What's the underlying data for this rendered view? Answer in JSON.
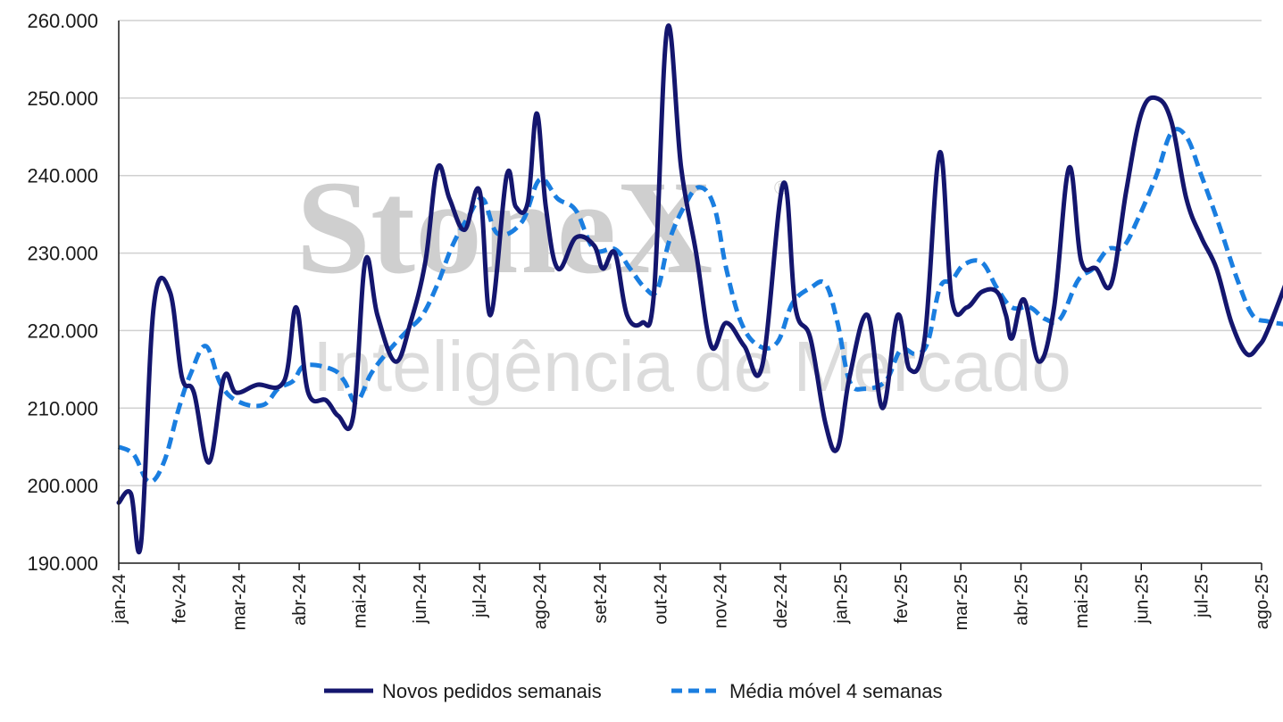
{
  "colors": {
    "series_solid": "#14166e",
    "series_dashed": "#1a7ee0",
    "grid": "#d0d0d0",
    "axis": "#1a1a1a",
    "watermark": "#cfcfcf"
  },
  "watermark": {
    "brand": "StoneX",
    "registered": "®",
    "tagline": "Inteligência de Mercado"
  },
  "chart_data": {
    "type": "line",
    "title": "",
    "xlabel": "",
    "ylabel": "",
    "ylim": [
      190000,
      260000
    ],
    "yticks": [
      190000,
      200000,
      210000,
      220000,
      230000,
      240000,
      250000,
      260000
    ],
    "ytick_labels": [
      "190.000",
      "200.000",
      "210.000",
      "220.000",
      "230.000",
      "240.000",
      "250.000",
      "260.000"
    ],
    "grid": true,
    "legend_position": "bottom",
    "x_month_labels": [
      "jan-24",
      "fev-24",
      "mar-24",
      "abr-24",
      "mai-24",
      "jun-24",
      "jul-24",
      "ago-24",
      "set-24",
      "out-24",
      "nov-24",
      "dez-24",
      "jan-25",
      "fev-25",
      "mar-25",
      "abr-25",
      "mai-25",
      "jun-25",
      "jul-25",
      "ago-25"
    ],
    "series": [
      {
        "name": "Novos pedidos semanais",
        "style": "solid",
        "points": [
          [
            0,
            197800
          ],
          [
            0.2,
            199000
          ],
          [
            0.37,
            192500
          ],
          [
            0.58,
            223000
          ],
          [
            0.85,
            225000
          ],
          [
            1.05,
            214000
          ],
          [
            1.25,
            212000
          ],
          [
            1.5,
            203000
          ],
          [
            1.75,
            214000
          ],
          [
            1.95,
            212000
          ],
          [
            2.3,
            213000
          ],
          [
            2.75,
            213500
          ],
          [
            2.95,
            223000
          ],
          [
            3.15,
            212000
          ],
          [
            3.45,
            211000
          ],
          [
            3.65,
            209000
          ],
          [
            3.9,
            209000
          ],
          [
            4.1,
            229000
          ],
          [
            4.3,
            222000
          ],
          [
            4.6,
            216000
          ],
          [
            4.85,
            221000
          ],
          [
            5.1,
            229000
          ],
          [
            5.3,
            241000
          ],
          [
            5.5,
            237000
          ],
          [
            5.75,
            233000
          ],
          [
            6.0,
            238000
          ],
          [
            6.18,
            222000
          ],
          [
            6.45,
            240000
          ],
          [
            6.6,
            236000
          ],
          [
            6.8,
            236500
          ],
          [
            6.95,
            248000
          ],
          [
            7.1,
            236000
          ],
          [
            7.3,
            228000
          ],
          [
            7.6,
            232000
          ],
          [
            7.9,
            231000
          ],
          [
            8.05,
            228000
          ],
          [
            8.25,
            230000
          ],
          [
            8.45,
            222000
          ],
          [
            8.7,
            221000
          ],
          [
            8.9,
            225000
          ],
          [
            9.12,
            259000
          ],
          [
            9.35,
            241000
          ],
          [
            9.6,
            230000
          ],
          [
            9.85,
            218000
          ],
          [
            10.1,
            221000
          ],
          [
            10.4,
            218000
          ],
          [
            10.7,
            215500
          ],
          [
            11.05,
            239000
          ],
          [
            11.25,
            223000
          ],
          [
            11.5,
            219000
          ],
          [
            11.75,
            208000
          ],
          [
            11.95,
            204800
          ],
          [
            12.15,
            214000
          ],
          [
            12.45,
            222000
          ],
          [
            12.7,
            210000
          ],
          [
            12.95,
            222000
          ],
          [
            13.15,
            215000
          ],
          [
            13.4,
            219000
          ],
          [
            13.65,
            243000
          ],
          [
            13.85,
            224000
          ],
          [
            14.1,
            223000
          ],
          [
            14.35,
            225000
          ],
          [
            14.6,
            225000
          ],
          [
            14.75,
            222000
          ],
          [
            14.85,
            219000
          ],
          [
            15.05,
            224000
          ],
          [
            15.3,
            216000
          ],
          [
            15.55,
            223000
          ],
          [
            15.8,
            241000
          ],
          [
            16.0,
            229000
          ],
          [
            16.25,
            228000
          ],
          [
            16.5,
            226000
          ],
          [
            16.75,
            238000
          ],
          [
            17.0,
            248000
          ],
          [
            17.25,
            250000
          ],
          [
            17.5,
            247000
          ],
          [
            17.75,
            237000
          ],
          [
            18.0,
            232000
          ],
          [
            18.25,
            228000
          ],
          [
            18.5,
            221000
          ],
          [
            18.75,
            217000
          ],
          [
            18.95,
            218000
          ],
          [
            19.1,
            220000
          ],
          [
            19.4,
            226000
          ]
        ]
      },
      {
        "name": "Média móvel 4 semanas",
        "style": "dashed",
        "points": [
          [
            0,
            205000
          ],
          [
            0.25,
            204000
          ],
          [
            0.5,
            200500
          ],
          [
            0.75,
            203000
          ],
          [
            1.0,
            210000
          ],
          [
            1.2,
            214500
          ],
          [
            1.45,
            218000
          ],
          [
            1.7,
            213000
          ],
          [
            2.0,
            210800
          ],
          [
            2.4,
            210400
          ],
          [
            2.65,
            212500
          ],
          [
            2.9,
            213500
          ],
          [
            3.1,
            215500
          ],
          [
            3.55,
            215000
          ],
          [
            3.75,
            213500
          ],
          [
            3.95,
            210800
          ],
          [
            4.2,
            214500
          ],
          [
            4.5,
            217500
          ],
          [
            4.8,
            220000
          ],
          [
            5.05,
            222000
          ],
          [
            5.3,
            226000
          ],
          [
            5.55,
            231000
          ],
          [
            5.8,
            234500
          ],
          [
            6.05,
            237000
          ],
          [
            6.3,
            232500
          ],
          [
            6.7,
            234000
          ],
          [
            7.0,
            239500
          ],
          [
            7.3,
            237000
          ],
          [
            7.6,
            235500
          ],
          [
            7.9,
            230500
          ],
          [
            8.25,
            230500
          ],
          [
            8.5,
            228000
          ],
          [
            8.75,
            225500
          ],
          [
            8.95,
            225200
          ],
          [
            9.15,
            231500
          ],
          [
            9.4,
            236000
          ],
          [
            9.65,
            238500
          ],
          [
            9.9,
            236000
          ],
          [
            10.1,
            228000
          ],
          [
            10.35,
            221000
          ],
          [
            10.65,
            218000
          ],
          [
            10.95,
            218500
          ],
          [
            11.2,
            223500
          ],
          [
            11.5,
            225500
          ],
          [
            11.75,
            226000
          ],
          [
            11.95,
            221000
          ],
          [
            12.15,
            213500
          ],
          [
            12.4,
            212500
          ],
          [
            12.75,
            213500
          ],
          [
            13.0,
            217500
          ],
          [
            13.25,
            217000
          ],
          [
            13.45,
            218500
          ],
          [
            13.65,
            225500
          ],
          [
            13.85,
            226500
          ],
          [
            14.05,
            228500
          ],
          [
            14.35,
            228800
          ],
          [
            14.6,
            225500
          ],
          [
            14.85,
            223000
          ],
          [
            15.15,
            223000
          ],
          [
            15.4,
            221500
          ],
          [
            15.65,
            221500
          ],
          [
            15.95,
            226500
          ],
          [
            16.2,
            228000
          ],
          [
            16.45,
            230500
          ],
          [
            16.7,
            230800
          ],
          [
            16.95,
            234500
          ],
          [
            17.25,
            240000
          ],
          [
            17.5,
            245500
          ],
          [
            17.75,
            245000
          ],
          [
            18.0,
            240000
          ],
          [
            18.3,
            233500
          ],
          [
            18.6,
            226500
          ],
          [
            18.85,
            222000
          ],
          [
            19.1,
            221200
          ],
          [
            19.4,
            220800
          ]
        ]
      }
    ]
  }
}
